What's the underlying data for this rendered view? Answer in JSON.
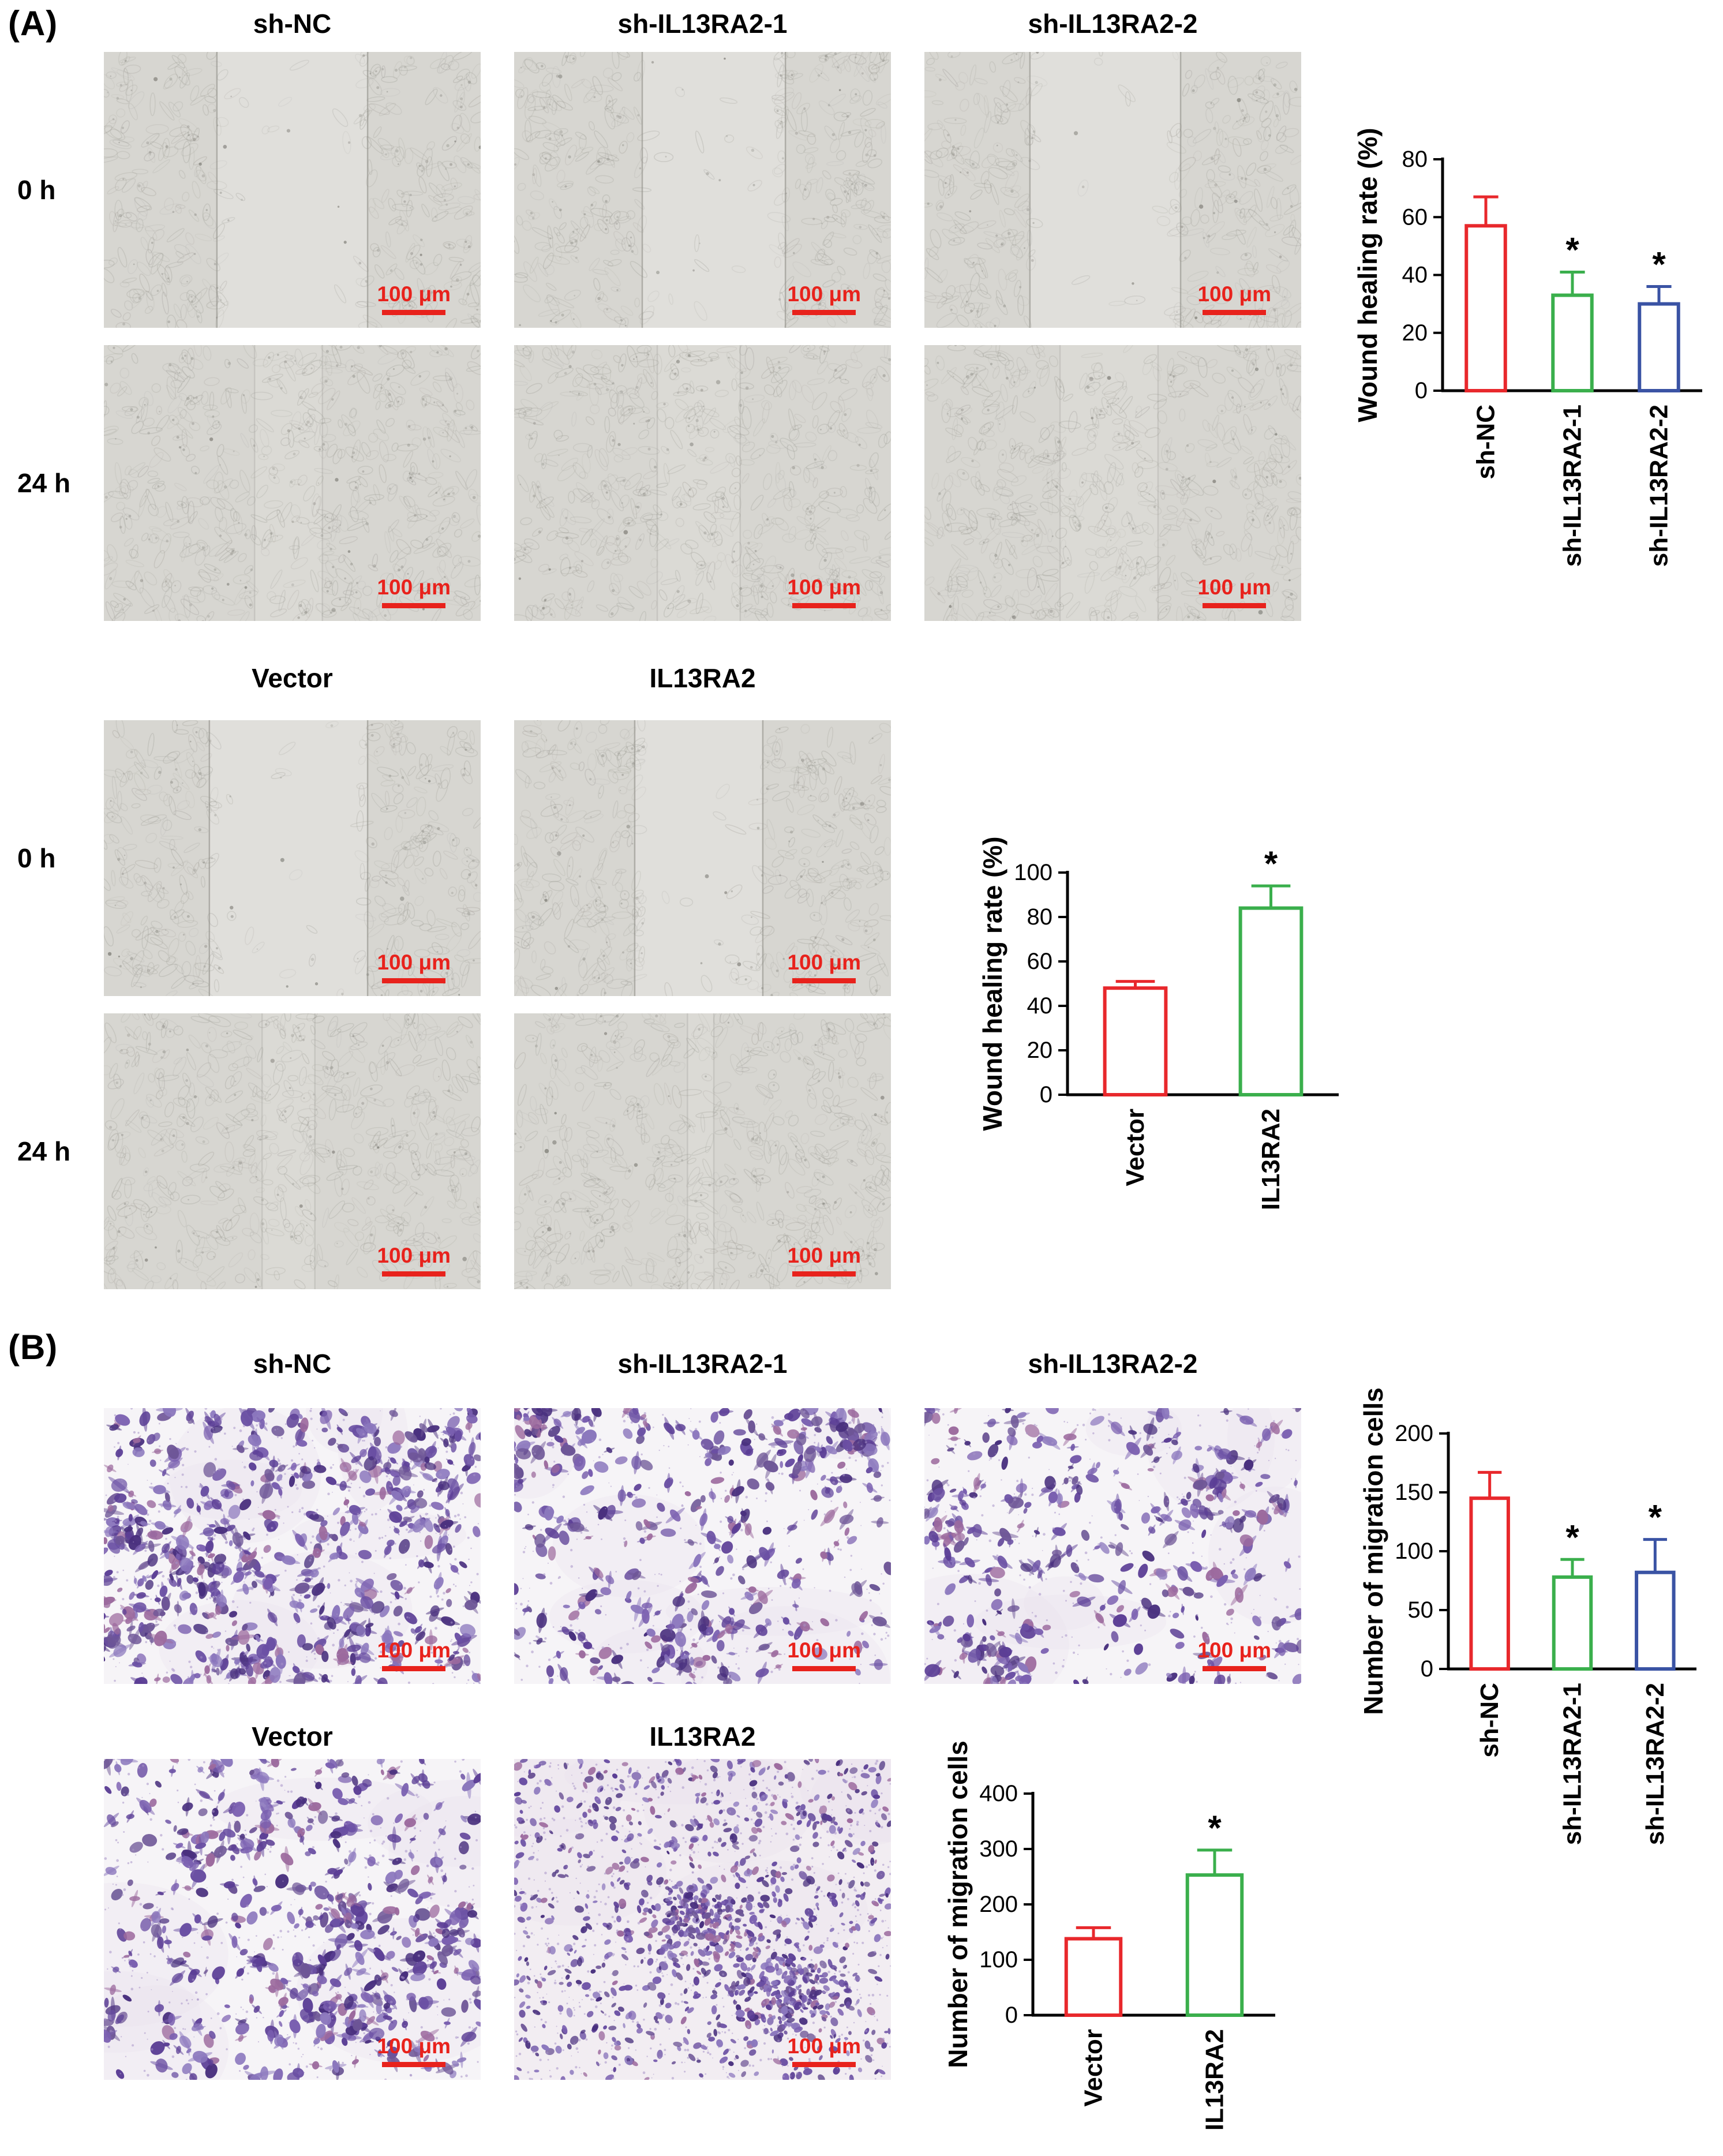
{
  "figure": {
    "scale_bar_label": "100 μm"
  },
  "panel_a": {
    "label": "(A)",
    "knockdown": {
      "headers": [
        "sh-NC",
        "sh-IL13RA2-1",
        "sh-IL13RA2-2"
      ],
      "rows": [
        "0 h",
        "24 h"
      ]
    },
    "overexpression": {
      "headers": [
        "Vector",
        "IL13RA2"
      ],
      "rows": [
        "0 h",
        "24 h"
      ]
    }
  },
  "panel_b": {
    "label": "(B)",
    "knockdown": {
      "headers": [
        "sh-NC",
        "sh-IL13RA2-1",
        "sh-IL13RA2-2"
      ]
    },
    "overexpression": {
      "headers": [
        "Vector",
        "IL13RA2"
      ]
    }
  },
  "colors": {
    "bar_red": "#e8282c",
    "bar_green": "#3aaf4c",
    "bar_blue": "#3a53a4",
    "scale_bar_red": "#e8221c",
    "axis": "#000000"
  },
  "chart_data": [
    {
      "id": "wound-healing-knockdown",
      "type": "bar",
      "title": "",
      "xlabel": "",
      "ylabel": "Wound healing rate (%)",
      "categories": [
        "sh-NC",
        "sh-IL13RA2-1",
        "sh-IL13RA2-2"
      ],
      "values": [
        57,
        33,
        30
      ],
      "errors": [
        10,
        8,
        6
      ],
      "significance": [
        "",
        "*",
        "*"
      ],
      "bar_colors": [
        "#e8282c",
        "#3aaf4c",
        "#3a53a4"
      ],
      "ylim": [
        0,
        80
      ],
      "yticks": [
        0,
        20,
        40,
        60,
        80
      ],
      "grid": false,
      "legend": null
    },
    {
      "id": "wound-healing-overexpression",
      "type": "bar",
      "title": "",
      "xlabel": "",
      "ylabel": "Wound healing rate (%)",
      "categories": [
        "Vector",
        "IL13RA2"
      ],
      "values": [
        48,
        84
      ],
      "errors": [
        3,
        10
      ],
      "significance": [
        "",
        "*"
      ],
      "bar_colors": [
        "#e8282c",
        "#3aaf4c"
      ],
      "ylim": [
        0,
        100
      ],
      "yticks": [
        0,
        20,
        40,
        60,
        80,
        100
      ],
      "grid": false,
      "legend": null
    },
    {
      "id": "migration-knockdown",
      "type": "bar",
      "title": "",
      "xlabel": "",
      "ylabel": "Number of migration cells",
      "categories": [
        "sh-NC",
        "sh-IL13RA2-1",
        "sh-IL13RA2-2"
      ],
      "values": [
        145,
        78,
        82
      ],
      "errors": [
        22,
        15,
        28
      ],
      "significance": [
        "",
        "*",
        "*"
      ],
      "bar_colors": [
        "#e8282c",
        "#3aaf4c",
        "#3a53a4"
      ],
      "ylim": [
        0,
        200
      ],
      "yticks": [
        0,
        50,
        100,
        150,
        200
      ],
      "grid": false,
      "legend": null
    },
    {
      "id": "migration-overexpression",
      "type": "bar",
      "title": "",
      "xlabel": "",
      "ylabel": "Number of migration cells",
      "categories": [
        "Vector",
        "IL13RA2"
      ],
      "values": [
        138,
        253
      ],
      "errors": [
        20,
        45
      ],
      "significance": [
        "",
        "*"
      ],
      "bar_colors": [
        "#e8282c",
        "#3aaf4c"
      ],
      "ylim": [
        0,
        400
      ],
      "yticks": [
        0,
        100,
        200,
        300,
        400
      ],
      "grid": false,
      "legend": null
    }
  ]
}
